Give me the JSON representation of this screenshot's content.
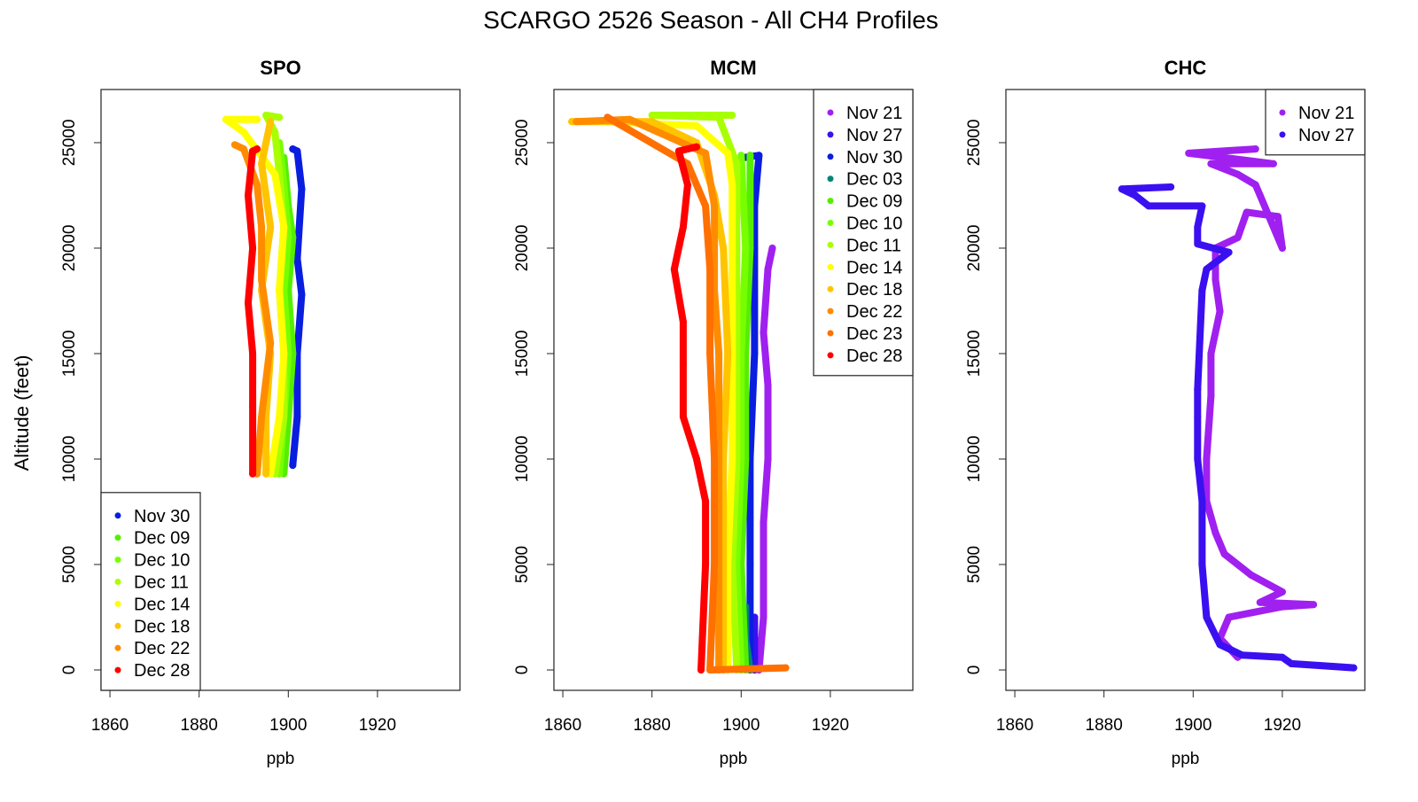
{
  "title": "SCARGO 2526 Season - All CH4 Profiles",
  "colors": {
    "Nov 21": "#A020F0",
    "Nov 27": "#3A10F0",
    "Nov 30": "#0A1EE0",
    "Dec 03": "#008577",
    "Dec 09": "#55EE00",
    "Dec 10": "#77FF00",
    "Dec 11": "#A8FF00",
    "Dec 14": "#FFFF00",
    "Dec 18": "#FFC400",
    "Dec 22": "#FF8C00",
    "Dec 23": "#FF7000",
    "Dec 28": "#FF0000"
  },
  "chart_data": [
    {
      "type": "scatter",
      "title": "SPO",
      "xlabel": "ppb",
      "ylabel": "Altitude (feet)",
      "xlim": [
        1858,
        1938.5
      ],
      "ylim": [
        -966,
        27520
      ],
      "xticks": [
        1860,
        1880,
        1900,
        1920
      ],
      "yticks": [
        0,
        5000,
        10000,
        15000,
        20000,
        25000
      ],
      "legend_position": "bottom-left",
      "series": [
        {
          "name": "Nov 30",
          "points": [
            [
              1901,
              9700
            ],
            [
              1902,
              12000
            ],
            [
              1902,
              15000
            ],
            [
              1903,
              17800
            ],
            [
              1902,
              19500
            ],
            [
              1903,
              22800
            ],
            [
              1902,
              24600
            ],
            [
              1901,
              24700
            ]
          ]
        },
        {
          "name": "Dec 09",
          "points": [
            [
              1899,
              9300
            ],
            [
              1900,
              12000
            ],
            [
              1901,
              15000
            ],
            [
              1900,
              18000
            ],
            [
              1901,
              20500
            ],
            [
              1900,
              22000
            ],
            [
              1899,
              24300
            ]
          ]
        },
        {
          "name": "Dec 10",
          "points": [
            [
              1898,
              9300
            ],
            [
              1899,
              12000
            ],
            [
              1900,
              15000
            ],
            [
              1899,
              18000
            ],
            [
              1900,
              20500
            ],
            [
              1899,
              23000
            ],
            [
              1898,
              25000
            ]
          ]
        },
        {
          "name": "Dec 11",
          "points": [
            [
              1897,
              9300
            ],
            [
              1899,
              12000
            ],
            [
              1899,
              15000
            ],
            [
              1898,
              18000
            ],
            [
              1899,
              21000
            ],
            [
              1898,
              23500
            ],
            [
              1897,
              25500
            ],
            [
              1895,
              26300
            ],
            [
              1898,
              26200
            ]
          ]
        },
        {
          "name": "Dec 14",
          "points": [
            [
              1896,
              9300
            ],
            [
              1898,
              12000
            ],
            [
              1899,
              15000
            ],
            [
              1898,
              18000
            ],
            [
              1899,
              21000
            ],
            [
              1897,
              23500
            ],
            [
              1890,
              25500
            ],
            [
              1886,
              26100
            ],
            [
              1893,
              26100
            ]
          ]
        },
        {
          "name": "Dec 18",
          "points": [
            [
              1895,
              9300
            ],
            [
              1895,
              12000
            ],
            [
              1896,
              15000
            ],
            [
              1894,
              18000
            ],
            [
              1896,
              21000
            ],
            [
              1894,
              24000
            ],
            [
              1896,
              26000
            ]
          ]
        },
        {
          "name": "Dec 22",
          "points": [
            [
              1893,
              9300
            ],
            [
              1894,
              12000
            ],
            [
              1896,
              15500
            ],
            [
              1894,
              18500
            ],
            [
              1894,
              21000
            ],
            [
              1893,
              23000
            ],
            [
              1890,
              24700
            ],
            [
              1888,
              24900
            ]
          ]
        },
        {
          "name": "Dec 28",
          "points": [
            [
              1892,
              9300
            ],
            [
              1892,
              12500
            ],
            [
              1892,
              15000
            ],
            [
              1891,
              17400
            ],
            [
              1892,
              20000
            ],
            [
              1891,
              22500
            ],
            [
              1892,
              24600
            ],
            [
              1893,
              24700
            ]
          ]
        }
      ]
    },
    {
      "type": "scatter",
      "title": "MCM",
      "xlabel": "ppb",
      "xlim": [
        1858,
        1938.5
      ],
      "ylim": [
        -966,
        27520
      ],
      "xticks": [
        1860,
        1880,
        1900,
        1920
      ],
      "yticks": [
        0,
        5000,
        10000,
        15000,
        20000,
        25000
      ],
      "legend_position": "top-right",
      "series": [
        {
          "name": "Nov 21",
          "points": [
            [
              1904,
              0
            ],
            [
              1905,
              2500
            ],
            [
              1905,
              7000
            ],
            [
              1906,
              10000
            ],
            [
              1906,
              13500
            ],
            [
              1905,
              16000
            ],
            [
              1906,
              19000
            ],
            [
              1907,
              20000
            ]
          ]
        },
        {
          "name": "Nov 27",
          "points": [
            [
              1903,
              0
            ],
            [
              1903,
              1500
            ],
            [
              1903,
              2500
            ]
          ]
        },
        {
          "name": "Nov 30",
          "points": [
            [
              1902,
              0
            ],
            [
              1902,
              5000
            ],
            [
              1902,
              10000
            ],
            [
              1903,
              15000
            ],
            [
              1903,
              20000
            ],
            [
              1903,
              22000
            ],
            [
              1904,
              24400
            ],
            [
              1901,
              24300
            ]
          ]
        },
        {
          "name": "Dec 03",
          "points": [
            [
              1902,
              0
            ],
            [
              1901,
              1500
            ],
            [
              1901,
              3000
            ]
          ]
        },
        {
          "name": "Dec 09",
          "points": [
            [
              1901,
              0
            ],
            [
              1900,
              5000
            ],
            [
              1901,
              10000
            ],
            [
              1901,
              15000
            ],
            [
              1902,
              20000
            ],
            [
              1902,
              24400
            ]
          ]
        },
        {
          "name": "Dec 10",
          "points": [
            [
              1900,
              0
            ],
            [
              1899,
              5000
            ],
            [
              1900,
              10000
            ],
            [
              1900,
              15000
            ],
            [
              1901,
              20000
            ],
            [
              1900,
              24400
            ]
          ]
        },
        {
          "name": "Dec 11",
          "points": [
            [
              1899,
              0
            ],
            [
              1898,
              5000
            ],
            [
              1899,
              10000
            ],
            [
              1899,
              15000
            ],
            [
              1899,
              20000
            ],
            [
              1899,
              24000
            ],
            [
              1895,
              26200
            ],
            [
              1880,
              26300
            ],
            [
              1898,
              26300
            ]
          ]
        },
        {
          "name": "Dec 14",
          "points": [
            [
              1897,
              0
            ],
            [
              1897,
              5000
            ],
            [
              1898,
              10000
            ],
            [
              1898,
              15000
            ],
            [
              1898,
              20000
            ],
            [
              1898,
              23000
            ],
            [
              1897,
              24500
            ],
            [
              1890,
              25800
            ],
            [
              1870,
              26000
            ]
          ]
        },
        {
          "name": "Dec 18",
          "points": [
            [
              1896,
              0
            ],
            [
              1896,
              5000
            ],
            [
              1896,
              10000
            ],
            [
              1897,
              15000
            ],
            [
              1896,
              20000
            ],
            [
              1894,
              22500
            ],
            [
              1890,
              25000
            ],
            [
              1880,
              26000
            ],
            [
              1862,
              26000
            ]
          ]
        },
        {
          "name": "Dec 22",
          "points": [
            [
              1895,
              0
            ],
            [
              1895,
              5000
            ],
            [
              1895,
              10000
            ],
            [
              1895,
              15000
            ],
            [
              1894,
              18000
            ],
            [
              1894,
              22000
            ],
            [
              1892,
              24500
            ],
            [
              1875,
              26100
            ],
            [
              1863,
              26000
            ]
          ]
        },
        {
          "name": "Dec 23",
          "points": [
            [
              1910,
              100
            ],
            [
              1893,
              0
            ],
            [
              1894,
              5000
            ],
            [
              1894,
              10000
            ],
            [
              1893,
              15000
            ],
            [
              1893,
              19000
            ],
            [
              1892,
              22000
            ],
            [
              1888,
              24000
            ],
            [
              1870,
              26200
            ]
          ]
        },
        {
          "name": "Dec 28",
          "points": [
            [
              1891,
              0
            ],
            [
              1892,
              5000
            ],
            [
              1892,
              8000
            ],
            [
              1890,
              10000
            ],
            [
              1887,
              12000
            ],
            [
              1887,
              14500
            ],
            [
              1887,
              16500
            ],
            [
              1885,
              19000
            ],
            [
              1887,
              21000
            ],
            [
              1888,
              23000
            ],
            [
              1886,
              24600
            ],
            [
              1890,
              24800
            ]
          ]
        }
      ]
    },
    {
      "type": "scatter",
      "title": "CHC",
      "xlabel": "ppb",
      "xlim": [
        1858,
        1938.5
      ],
      "ylim": [
        -966,
        27520
      ],
      "xticks": [
        1860,
        1880,
        1900,
        1920
      ],
      "yticks": [
        0,
        5000,
        10000,
        15000,
        20000,
        25000
      ],
      "legend_position": "top-right",
      "series": [
        {
          "name": "Nov 21",
          "points": [
            [
              1910,
              600
            ],
            [
              1906,
              1500
            ],
            [
              1908,
              2500
            ],
            [
              1920,
              3000
            ],
            [
              1927,
              3100
            ],
            [
              1915,
              3200
            ],
            [
              1920,
              3700
            ],
            [
              1913,
              4500
            ],
            [
              1907,
              5500
            ],
            [
              1905,
              6500
            ],
            [
              1903,
              8000
            ],
            [
              1903,
              10000
            ],
            [
              1904,
              13000
            ],
            [
              1904,
              15000
            ],
            [
              1906,
              17000
            ],
            [
              1905,
              18500
            ],
            [
              1905,
              20000
            ],
            [
              1910,
              20500
            ],
            [
              1912,
              21700
            ],
            [
              1919,
              21500
            ],
            [
              1920,
              20000
            ],
            [
              1915,
              22500
            ],
            [
              1914,
              23000
            ],
            [
              1910,
              23500
            ],
            [
              1904,
              24000
            ],
            [
              1918,
              24000
            ],
            [
              1899,
              24500
            ],
            [
              1914,
              24700
            ]
          ]
        },
        {
          "name": "Nov 27",
          "points": [
            [
              1936,
              100
            ],
            [
              1922,
              300
            ],
            [
              1920,
              600
            ],
            [
              1911,
              700
            ],
            [
              1906,
              1200
            ],
            [
              1903,
              2500
            ],
            [
              1902,
              5000
            ],
            [
              1902,
              8000
            ],
            [
              1901,
              10000
            ],
            [
              1901,
              12000
            ],
            [
              1901,
              13300
            ],
            [
              1901,
              13300
            ],
            [
              1902,
              18000
            ],
            [
              1903,
              19000
            ],
            [
              1908,
              19800
            ],
            [
              1901,
              20200
            ],
            [
              1901,
              21000
            ],
            [
              1902,
              22000
            ],
            [
              1890,
              22000
            ],
            [
              1887,
              22500
            ],
            [
              1884,
              22800
            ],
            [
              1895,
              22900
            ]
          ]
        }
      ]
    }
  ]
}
